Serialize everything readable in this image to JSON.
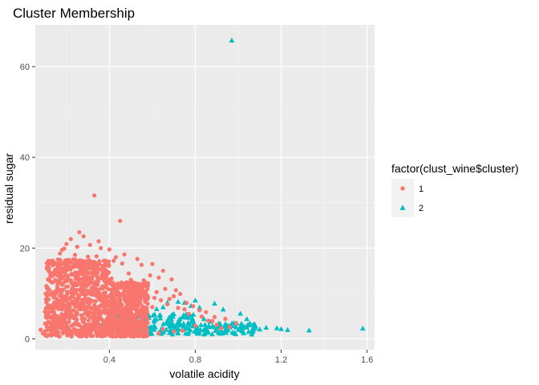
{
  "chart_data": {
    "type": "scatter",
    "title": "Cluster Membership",
    "xlabel": "volatile acidity",
    "ylabel": "residual sugar",
    "xlim": [
      0.055,
      1.635
    ],
    "ylim": [
      -2.4,
      69.2
    ],
    "x_ticks": [
      0.4,
      0.8,
      1.2,
      1.6
    ],
    "x_tick_labels": [
      "0.4",
      "0.8",
      "1.2",
      "1.6"
    ],
    "y_ticks": [
      0,
      20,
      40,
      60
    ],
    "y_tick_labels": [
      "0",
      "20",
      "40",
      "60"
    ],
    "grid": true,
    "panel_background": "#ebebeb",
    "legend": {
      "title": "factor(clust_wine$cluster)",
      "position": "right",
      "entries": [
        {
          "label": "1",
          "shape": "circle",
          "color": "#F8766D"
        },
        {
          "label": "2",
          "shape": "triangle",
          "color": "#00BFC4"
        }
      ]
    },
    "series": [
      {
        "name": "1",
        "shape": "circle",
        "color": "#F8766D",
        "points": [
          [
            0.33,
            31.6
          ],
          [
            0.45,
            26.0
          ],
          [
            0.26,
            23.5
          ],
          [
            0.28,
            22.6
          ],
          [
            0.22,
            22.0
          ],
          [
            0.35,
            21.5
          ],
          [
            0.2,
            20.9
          ],
          [
            0.31,
            20.7
          ],
          [
            0.25,
            20.3
          ],
          [
            0.36,
            20.0
          ],
          [
            0.19,
            19.9
          ],
          [
            0.4,
            19.7
          ],
          [
            0.18,
            19.6
          ],
          [
            0.47,
            18.6
          ],
          [
            0.43,
            18.0
          ],
          [
            0.3,
            18.1
          ],
          [
            0.24,
            18.5
          ],
          [
            0.34,
            18.2
          ],
          [
            0.53,
            17.6
          ],
          [
            0.42,
            17.2
          ],
          [
            0.55,
            16.3
          ],
          [
            0.46,
            16.6
          ],
          [
            0.6,
            16.5
          ],
          [
            0.65,
            15.0
          ],
          [
            0.49,
            14.4
          ],
          [
            0.59,
            14.0
          ],
          [
            0.63,
            13.5
          ],
          [
            0.69,
            13.1
          ],
          [
            0.5,
            13.0
          ],
          [
            0.51,
            12.4
          ],
          [
            0.56,
            12.9
          ],
          [
            0.58,
            11.8
          ],
          [
            0.66,
            11.0
          ],
          [
            0.71,
            10.7
          ],
          [
            0.62,
            10.3
          ],
          [
            0.55,
            10.0
          ],
          [
            0.73,
            9.9
          ],
          [
            0.7,
            9.4
          ],
          [
            0.57,
            9.1
          ],
          [
            0.64,
            8.5
          ],
          [
            0.76,
            7.9
          ],
          [
            0.67,
            7.6
          ],
          [
            0.79,
            7.2
          ],
          [
            0.6,
            7.0
          ],
          [
            0.72,
            6.8
          ],
          [
            0.82,
            6.3
          ],
          [
            0.85,
            5.9
          ],
          [
            0.75,
            6.5
          ],
          [
            0.89,
            4.8
          ],
          [
            0.94,
            4.4
          ],
          [
            0.88,
            3.9
          ],
          [
            0.99,
            3.4
          ],
          [
            0.8,
            2.9
          ],
          [
            0.92,
            2.3
          ],
          [
            0.65,
            2.1
          ],
          [
            0.74,
            1.8
          ],
          [
            0.63,
            1.2
          ],
          [
            0.55,
            1.0
          ],
          [
            0.47,
            0.9
          ],
          [
            0.7,
            1.6
          ],
          [
            0.08,
            2.0
          ],
          [
            0.09,
            1.2
          ],
          [
            0.1,
            6.0
          ],
          [
            0.11,
            9.5
          ],
          [
            0.12,
            13.0
          ],
          [
            0.13,
            12.5
          ],
          [
            0.14,
            16.5
          ],
          [
            0.15,
            15.0
          ],
          [
            0.16,
            17.5
          ],
          [
            0.17,
            18.8
          ],
          [
            0.21,
            16.0
          ],
          [
            0.23,
            15.8
          ],
          [
            0.27,
            17.0
          ],
          [
            0.29,
            16.2
          ],
          [
            0.32,
            15.5
          ],
          [
            0.37,
            14.8
          ],
          [
            0.38,
            15.2
          ],
          [
            0.39,
            14.2
          ],
          [
            0.41,
            13.3
          ],
          [
            0.44,
            12.2
          ],
          [
            0.48,
            11.5
          ],
          [
            0.52,
            10.8
          ],
          [
            0.54,
            9.8
          ],
          [
            0.61,
            9.0
          ],
          [
            0.68,
            8.8
          ],
          [
            0.77,
            5.5
          ],
          [
            0.83,
            4.9
          ],
          [
            0.86,
            4.0
          ],
          [
            0.9,
            3.1
          ],
          [
            0.96,
            2.6
          ]
        ]
      },
      {
        "name": "2",
        "shape": "triangle",
        "color": "#00BFC4",
        "points": [
          [
            0.97,
            65.8
          ],
          [
            1.58,
            2.3
          ],
          [
            1.33,
            1.9
          ],
          [
            1.23,
            2.0
          ],
          [
            1.18,
            2.4
          ],
          [
            1.1,
            2.1
          ],
          [
            1.05,
            3.0
          ],
          [
            1.04,
            4.4
          ],
          [
            1.01,
            5.6
          ],
          [
            0.93,
            6.5
          ],
          [
            0.89,
            7.8
          ],
          [
            0.82,
            6.9
          ],
          [
            0.8,
            8.5
          ],
          [
            0.78,
            7.3
          ],
          [
            0.75,
            8.0
          ],
          [
            0.72,
            8.2
          ],
          [
            0.67,
            8.0
          ],
          [
            0.65,
            7.0
          ],
          [
            0.62,
            6.6
          ],
          [
            0.58,
            5.4
          ],
          [
            0.55,
            6.0
          ],
          [
            0.52,
            5.0
          ],
          [
            0.5,
            4.6
          ],
          [
            0.48,
            3.9
          ],
          [
            0.46,
            3.2
          ],
          [
            0.43,
            2.6
          ],
          [
            0.4,
            2.0
          ],
          [
            0.38,
            1.7
          ],
          [
            0.36,
            1.4
          ],
          [
            0.69,
            5.2
          ],
          [
            0.74,
            4.8
          ],
          [
            0.84,
            4.4
          ],
          [
            0.87,
            3.8
          ],
          [
            0.91,
            3.4
          ],
          [
            0.95,
            2.9
          ],
          [
            0.99,
            2.6
          ],
          [
            1.08,
            2.8
          ],
          [
            1.13,
            2.5
          ],
          [
            1.2,
            2.2
          ],
          [
            0.86,
            1.6
          ],
          [
            0.77,
            1.5
          ],
          [
            0.63,
            1.3
          ],
          [
            0.57,
            1.1
          ],
          [
            0.6,
            2.4
          ],
          [
            0.7,
            2.8
          ],
          [
            0.81,
            2.5
          ],
          [
            0.94,
            1.9
          ],
          [
            1.02,
            1.8
          ],
          [
            0.68,
            3.6
          ],
          [
            0.73,
            3.3
          ],
          [
            0.79,
            3.8
          ],
          [
            0.85,
            2.2
          ],
          [
            0.92,
            2.0
          ],
          [
            1.07,
            1.9
          ]
        ]
      }
    ]
  }
}
